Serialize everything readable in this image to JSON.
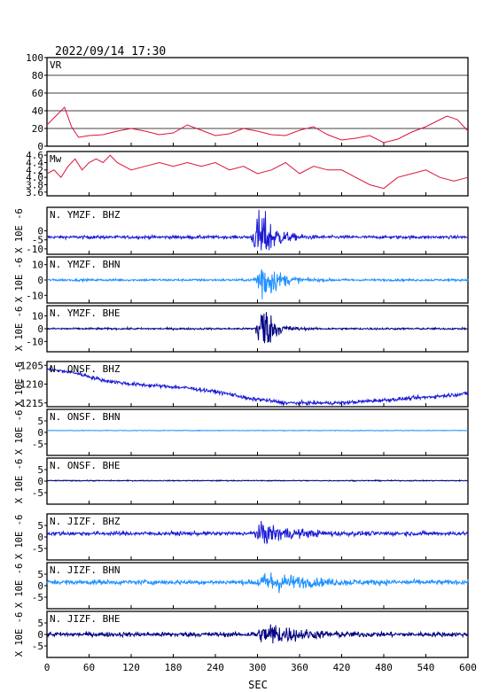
{
  "header": {
    "timestamp": "2022/09/14 17:30"
  },
  "chart_data": {
    "type": "line",
    "x": {
      "label": "SEC",
      "range": [
        0,
        600
      ],
      "ticks": [
        "0",
        "60",
        "120",
        "180",
        "240",
        "300",
        "360",
        "420",
        "480",
        "540",
        "600"
      ]
    },
    "colors": {
      "frame": "#000000",
      "vr": "#dc143c",
      "mw": "#dc143c",
      "bhz": "#1a1ad6",
      "bhn": "#1e90ff",
      "bhe": "#000080",
      "grid": "#000000"
    },
    "panels": [
      {
        "id": "vr",
        "label": "VR",
        "ylabel": "",
        "ylim": [
          0,
          100
        ],
        "yticks": [
          "100",
          "80",
          "60",
          "40",
          "20",
          "0"
        ],
        "grid": true,
        "series": {
          "x": [
            0,
            15,
            25,
            35,
            45,
            60,
            80,
            100,
            120,
            140,
            160,
            180,
            200,
            220,
            240,
            260,
            280,
            300,
            320,
            340,
            360,
            380,
            400,
            420,
            440,
            460,
            480,
            500,
            520,
            540,
            555,
            570,
            585,
            600
          ],
          "y": [
            24,
            36,
            44,
            22,
            10,
            12,
            13,
            17,
            20,
            17,
            13,
            15,
            24,
            18,
            12,
            14,
            20,
            17,
            13,
            12,
            18,
            22,
            13,
            7,
            9,
            12,
            4,
            8,
            16,
            22,
            28,
            34,
            30,
            17
          ]
        }
      },
      {
        "id": "mw",
        "label": "Mw",
        "ylabel": "",
        "ylim": [
          3.5,
          4.7
        ],
        "yticks": [
          "4.6",
          "4.4",
          "4.2",
          "4.0",
          "3.8",
          "3.6"
        ],
        "grid": false,
        "series": {
          "x": [
            0,
            10,
            20,
            30,
            40,
            50,
            60,
            70,
            80,
            90,
            100,
            120,
            140,
            160,
            180,
            200,
            220,
            240,
            260,
            280,
            300,
            320,
            340,
            360,
            380,
            400,
            420,
            440,
            460,
            480,
            500,
            520,
            540,
            560,
            580,
            600
          ],
          "y": [
            4.1,
            4.2,
            4.0,
            4.3,
            4.5,
            4.2,
            4.4,
            4.5,
            4.4,
            4.6,
            4.4,
            4.2,
            4.3,
            4.4,
            4.3,
            4.4,
            4.3,
            4.4,
            4.2,
            4.3,
            4.1,
            4.2,
            4.4,
            4.1,
            4.3,
            4.2,
            4.2,
            4.0,
            3.8,
            3.7,
            4.0,
            4.1,
            4.2,
            4.0,
            3.9,
            4.0
          ]
        }
      },
      {
        "id": "ymzf-bhz",
        "label": "N. YMZF. BHZ",
        "ylabel": "X 10E -6",
        "ylim": [
          -13,
          13
        ],
        "yticks": [
          "0",
          "-5",
          "-10"
        ],
        "series_type": "trace",
        "colorKey": "bhz",
        "baseline": -3.5,
        "noise": 0.6,
        "burst_start": 290,
        "burst_peak": 305,
        "burst_amp": 12,
        "burst_decay": 18
      },
      {
        "id": "ymzf-bhn",
        "label": "N. YMZF. BHN",
        "ylabel": "X 10E -6",
        "ylim": [
          -15,
          15
        ],
        "yticks": [
          "10",
          "0",
          "-10"
        ],
        "series_type": "trace",
        "colorKey": "bhn",
        "baseline": 0,
        "noise": 0.5,
        "burst_start": 292,
        "burst_peak": 308,
        "burst_amp": 11,
        "burst_decay": 20
      },
      {
        "id": "ymzf-bhe",
        "label": "N. YMZF. BHE",
        "ylabel": "X 10E -6",
        "ylim": [
          -18,
          18
        ],
        "yticks": [
          "10",
          "0",
          "-10"
        ],
        "series_type": "trace",
        "colorKey": "bhe",
        "baseline": 0,
        "noise": 0.5,
        "burst_start": 295,
        "burst_peak": 308,
        "burst_amp": 16,
        "burst_decay": 14
      },
      {
        "id": "onsf-bhz",
        "label": "N. ONSF. BHZ",
        "ylabel": "X 10E -6",
        "ylim": [
          -1216,
          -1204
        ],
        "yticks": [
          "-1205",
          "-1210",
          "-1215"
        ],
        "series_type": "drift",
        "colorKey": "bhz",
        "drift_x": [
          0,
          40,
          80,
          120,
          160,
          200,
          240,
          270,
          290,
          300,
          340,
          380,
          420,
          460,
          500,
          540,
          570,
          600
        ],
        "drift_y": [
          -1206,
          -1207,
          -1209,
          -1210,
          -1210.5,
          -1211,
          -1212,
          -1213,
          -1214,
          -1214,
          -1215,
          -1215,
          -1215,
          -1214.5,
          -1214,
          -1213.5,
          -1213,
          -1212.5
        ],
        "noise": 0.35
      },
      {
        "id": "onsf-bhn",
        "label": "N. ONSF. BHN",
        "ylabel": "X 10E -6",
        "ylim": [
          -10,
          10
        ],
        "yticks": [
          "5",
          "0",
          "-5"
        ],
        "series_type": "flat",
        "colorKey": "bhn",
        "baseline": 0.8,
        "noise": 0.1
      },
      {
        "id": "onsf-bhe",
        "label": "N. ONSF. BHE",
        "ylabel": "X 10E -6",
        "ylim": [
          -10,
          10
        ],
        "yticks": [
          "5",
          "0",
          "-5"
        ],
        "series_type": "flat",
        "colorKey": "bhe",
        "baseline": 0.2,
        "noise": 0.15
      },
      {
        "id": "jizf-bhz",
        "label": "N. JIZF. BHZ",
        "ylabel": "X 10E -6",
        "ylim": [
          -10,
          10
        ],
        "yticks": [
          "5",
          "0",
          "-5"
        ],
        "series_type": "trace",
        "colorKey": "bhz",
        "baseline": 1.5,
        "noise": 0.6,
        "burst_start": 290,
        "burst_peak": 310,
        "burst_amp": 3,
        "burst_decay": 40
      },
      {
        "id": "jizf-bhn",
        "label": "N. JIZF. BHN",
        "ylabel": "X 10E -6",
        "ylim": [
          -10,
          10
        ],
        "yticks": [
          "5",
          "0",
          "-5"
        ],
        "series_type": "trace",
        "colorKey": "bhn",
        "baseline": 1.5,
        "noise": 0.7,
        "burst_start": 290,
        "burst_peak": 320,
        "burst_amp": 3,
        "burst_decay": 45
      },
      {
        "id": "jizf-bhe",
        "label": "N. JIZF. BHE",
        "ylabel": "X 10E -6",
        "ylim": [
          -10,
          10
        ],
        "yticks": [
          "5",
          "0",
          "-5"
        ],
        "series_type": "trace",
        "colorKey": "bhe",
        "baseline": 0,
        "noise": 0.7,
        "burst_start": 290,
        "burst_peak": 320,
        "burst_amp": 3.2,
        "burst_decay": 40
      }
    ]
  }
}
